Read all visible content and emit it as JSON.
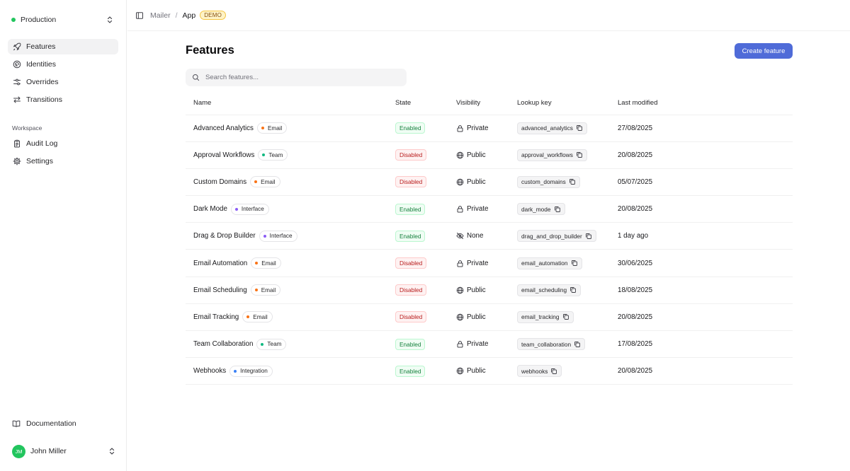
{
  "sidebar": {
    "environment": "Production",
    "nav": [
      {
        "label": "Features",
        "icon": "rocket-icon",
        "active": true
      },
      {
        "label": "Identities",
        "icon": "globe-fingerprint-icon"
      },
      {
        "label": "Overrides",
        "icon": "sliders-icon"
      },
      {
        "label": "Transitions",
        "icon": "arrows-swap-icon"
      }
    ],
    "workspace_label": "Workspace",
    "workspace_nav": [
      {
        "label": "Audit Log",
        "icon": "clipboard-icon"
      },
      {
        "label": "Settings",
        "icon": "gear-icon"
      }
    ],
    "documentation": "Documentation",
    "user": {
      "initials": "JM",
      "name": "John Miller"
    }
  },
  "breadcrumb": {
    "parent": "Mailer",
    "separator": "/",
    "current": "App",
    "badge": "DEMO"
  },
  "main": {
    "title": "Features",
    "create_button": "Create feature",
    "search_placeholder": "Search features...",
    "columns": [
      "Name",
      "State",
      "Visibility",
      "Lookup key",
      "Last modified"
    ],
    "rows": [
      {
        "name": "Advanced Analytics",
        "category": "Email",
        "state": "Enabled",
        "visibility": "Private",
        "key": "advanced_analytics",
        "modified": "27/08/2025"
      },
      {
        "name": "Approval Workflows",
        "category": "Team",
        "state": "Disabled",
        "visibility": "Public",
        "key": "approval_workflows",
        "modified": "20/08/2025"
      },
      {
        "name": "Custom Domains",
        "category": "Email",
        "state": "Disabled",
        "visibility": "Public",
        "key": "custom_domains",
        "modified": "05/07/2025"
      },
      {
        "name": "Dark Mode",
        "category": "Interface",
        "state": "Enabled",
        "visibility": "Private",
        "key": "dark_mode",
        "modified": "20/08/2025"
      },
      {
        "name": "Drag & Drop Builder",
        "category": "Interface",
        "state": "Enabled",
        "visibility": "None",
        "key": "drag_and_drop_builder",
        "modified": "1 day ago"
      },
      {
        "name": "Email Automation",
        "category": "Email",
        "state": "Disabled",
        "visibility": "Private",
        "key": "email_automation",
        "modified": "30/06/2025"
      },
      {
        "name": "Email Scheduling",
        "category": "Email",
        "state": "Disabled",
        "visibility": "Public",
        "key": "email_scheduling",
        "modified": "18/08/2025"
      },
      {
        "name": "Email Tracking",
        "category": "Email",
        "state": "Disabled",
        "visibility": "Public",
        "key": "email_tracking",
        "modified": "20/08/2025"
      },
      {
        "name": "Team Collaboration",
        "category": "Team",
        "state": "Enabled",
        "visibility": "Private",
        "key": "team_collaboration",
        "modified": "17/08/2025"
      },
      {
        "name": "Webhooks",
        "category": "Integration",
        "state": "Enabled",
        "visibility": "Public",
        "key": "webhooks",
        "modified": "20/08/2025"
      }
    ]
  },
  "colors": {
    "accent": "#4f6bd8",
    "env_dot": "#22c55e",
    "category_email": "#f97316",
    "category_team": "#10b981",
    "category_interface": "#8b5cf6",
    "category_integration": "#3b82f6"
  }
}
